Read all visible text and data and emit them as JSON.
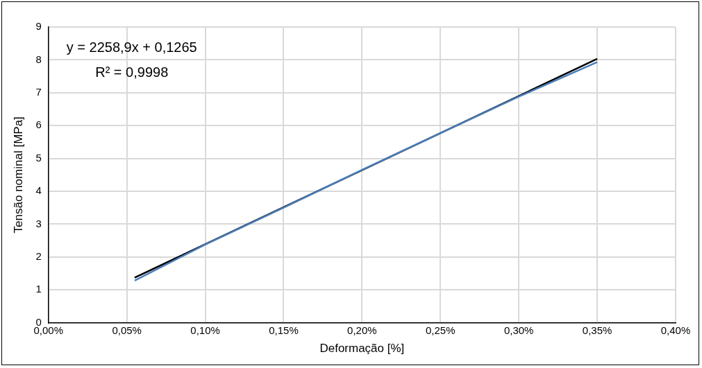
{
  "chart_data": {
    "type": "line",
    "xlabel": "Deformação [%]",
    "ylabel": "Tensão nominal [MPa]",
    "x": [
      0.055,
      0.1,
      0.15,
      0.2,
      0.25,
      0.3,
      0.35
    ],
    "series": [
      {
        "color": "#4a7ebb",
        "values": [
          1.28,
          2.38,
          3.5,
          4.65,
          5.77,
          6.88,
          7.93
        ]
      },
      {
        "type": "line",
        "color": "#000000",
        "x": [
          0.055,
          0.35
        ],
        "values": [
          1.37,
          8.03
        ]
      }
    ],
    "xlim": [
      0,
      0.4
    ],
    "xticks": [
      {
        "value": 0,
        "label": "0,00%"
      },
      {
        "value": 0.05,
        "label": "0,05%"
      },
      {
        "value": 0.1,
        "label": "0,10%"
      },
      {
        "value": 0.15,
        "label": "0,15%"
      },
      {
        "value": 0.2,
        "label": "0,20%"
      },
      {
        "value": 0.25,
        "label": "0,25%"
      },
      {
        "value": 0.3,
        "label": "0,30%"
      },
      {
        "value": 0.35,
        "label": "0,35%"
      },
      {
        "value": 0.4,
        "label": "0,40%"
      }
    ],
    "ylim": [
      0,
      9
    ],
    "yticks": [
      0,
      1,
      2,
      3,
      4,
      5,
      6,
      7,
      8,
      9
    ],
    "annotations": [
      "y = 2258,9x + 0,1265",
      "R² = 0,9998"
    ],
    "grid": true,
    "legend": false,
    "marker": "none",
    "line_style": "solid"
  }
}
